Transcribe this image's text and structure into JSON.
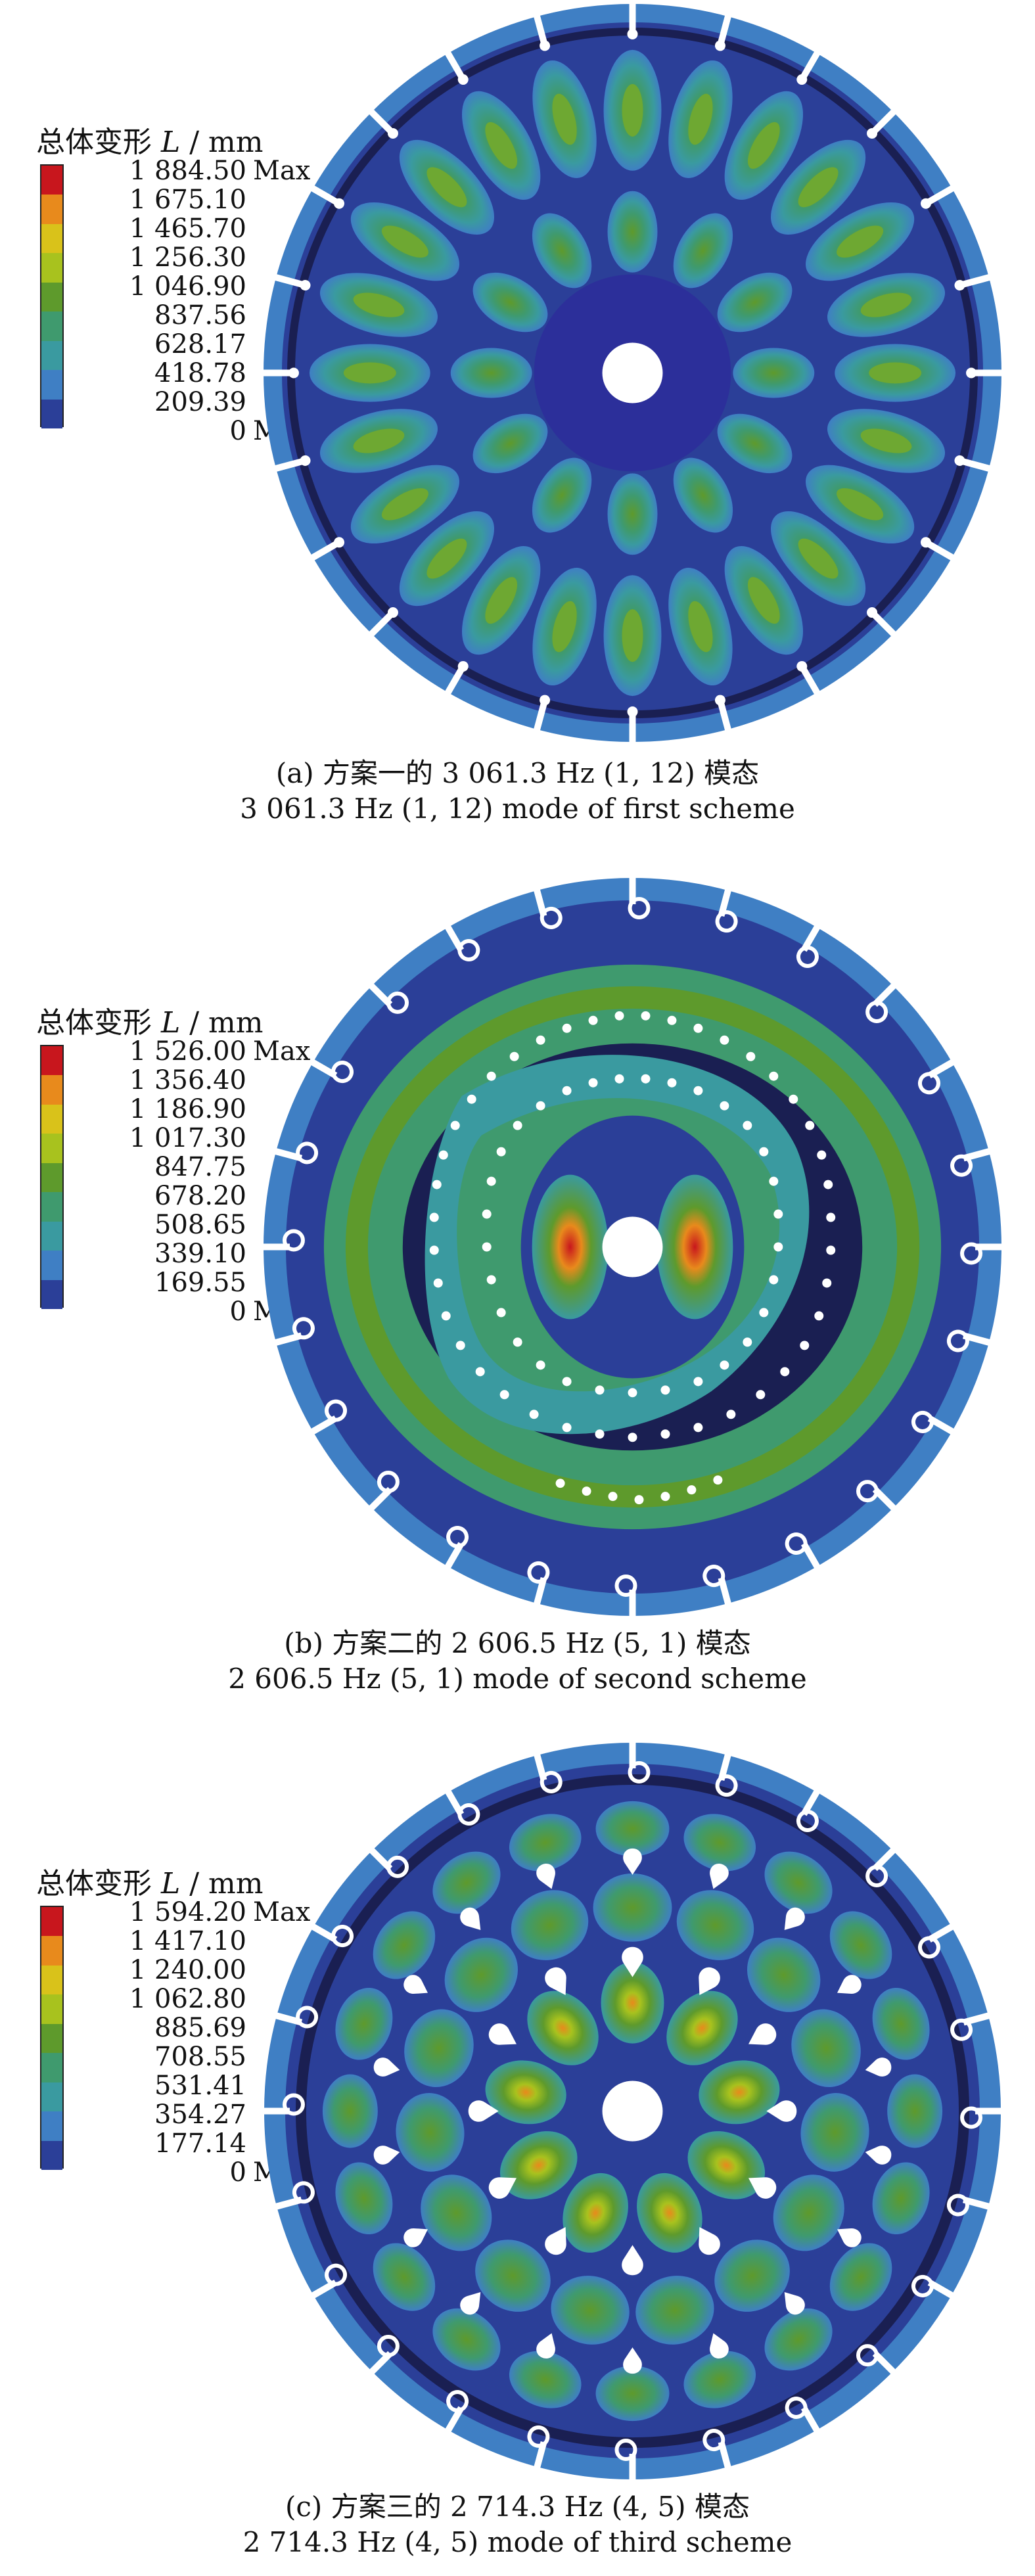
{
  "panels": [
    {
      "legend_title": "总体变形",
      "legend_symbol": "L",
      "legend_unit": "/ mm",
      "max_label": "Max",
      "min_label": "Min",
      "values": [
        "1 884.50",
        "1 675.10",
        "1 465.70",
        "1 256.30",
        "1 046.90",
        "837.56",
        "628.17",
        "418.78",
        "209.39",
        "0"
      ],
      "caption_cn": "(a) 方案一的 3 061.3 Hz (1, 12) 模态",
      "caption_en": "3 061.3 Hz (1, 12) mode of first scheme"
    },
    {
      "legend_title": "总体变形",
      "legend_symbol": "L",
      "legend_unit": "/ mm",
      "max_label": "Max",
      "min_label": "Min",
      "values": [
        "1 526.00",
        "1 356.40",
        "1 186.90",
        "1 017.30",
        "847.75",
        "678.20",
        "508.65",
        "339.10",
        "169.55",
        "0"
      ],
      "caption_cn": "(b) 方案二的 2 606.5 Hz (5, 1) 模态",
      "caption_en": "2 606.5 Hz (5, 1) mode of second scheme"
    },
    {
      "legend_title": "总体变形",
      "legend_symbol": "L",
      "legend_unit": "/ mm",
      "max_label": "Max",
      "min_label": "Min",
      "values": [
        "1 594.20",
        "1 417.10",
        "1 240.00",
        "1 062.80",
        "885.69",
        "708.55",
        "531.41",
        "354.27",
        "177.14",
        "0"
      ],
      "caption_cn": "(c) 方案三的 2 714.3 Hz (4, 5) 模态",
      "caption_en": "2 714.3 Hz (4, 5) mode of third scheme"
    }
  ],
  "colormap": [
    "#c8161d",
    "#e88a1c",
    "#d9c21a",
    "#a8c21e",
    "#5e9a2c",
    "#3f9a6e",
    "#3a9aa0",
    "#3f7fc4",
    "#2b3f98"
  ],
  "colors": {
    "background_blue": "#2c2f9a",
    "dark_navy": "#1a1f52",
    "slot_white": "#ffffff"
  }
}
